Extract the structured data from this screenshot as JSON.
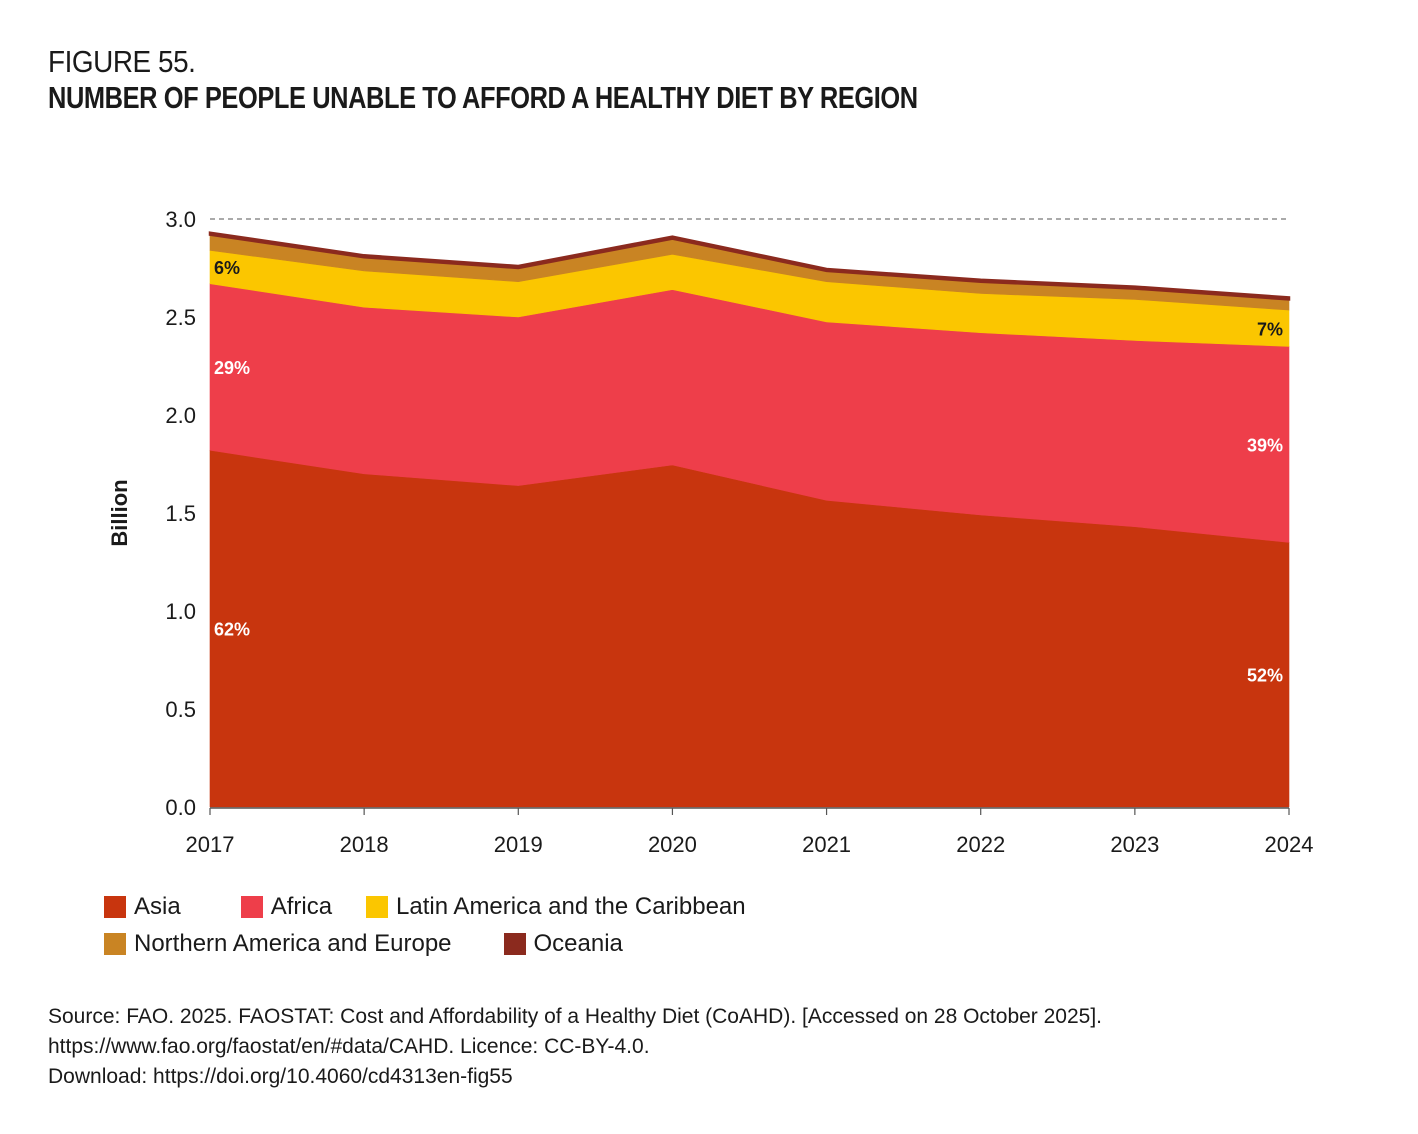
{
  "figure": {
    "number": "FIGURE 55.",
    "title": "NUMBER OF PEOPLE UNABLE TO AFFORD A HEALTHY DIET BY REGION"
  },
  "chart_data": {
    "type": "area",
    "stacked": true,
    "title": "NUMBER OF PEOPLE UNABLE TO AFFORD A HEALTHY DIET BY REGION",
    "xlabel": "",
    "ylabel": "Billion",
    "x": [
      "2017",
      "2018",
      "2019",
      "2020",
      "2021",
      "2022",
      "2023",
      "2024"
    ],
    "ylim": [
      0,
      3.0
    ],
    "yticks": [
      "0.0",
      "0.5",
      "1.0",
      "1.5",
      "2.0",
      "2.5",
      "3.0"
    ],
    "ytick_values": [
      0,
      0.5,
      1.0,
      1.5,
      2.0,
      2.5,
      3.0
    ],
    "reference_line": {
      "value": 3.0,
      "style": "dashed"
    },
    "grid": false,
    "legend_position": "bottom",
    "series": [
      {
        "name": "Asia",
        "color": "#C8350E",
        "values": [
          1.82,
          1.7,
          1.64,
          1.745,
          1.565,
          1.49,
          1.43,
          1.35
        ]
      },
      {
        "name": "Africa",
        "color": "#EE3E4A",
        "values": [
          0.85,
          0.85,
          0.86,
          0.895,
          0.91,
          0.93,
          0.95,
          1.0
        ]
      },
      {
        "name": "Latin America and the Caribbean",
        "color": "#FBC600",
        "values": [
          0.17,
          0.185,
          0.18,
          0.18,
          0.205,
          0.2,
          0.21,
          0.185
        ]
      },
      {
        "name": "Northern America and Europe",
        "color": "#C98423",
        "values": [
          0.08,
          0.07,
          0.07,
          0.08,
          0.055,
          0.06,
          0.055,
          0.055
        ]
      },
      {
        "name": "Oceania",
        "color": "#8B2A1E",
        "values": [
          0.01,
          0.01,
          0.01,
          0.01,
          0.01,
          0.01,
          0.01,
          0.01
        ]
      }
    ],
    "annotations": [
      {
        "series": "Asia",
        "x": "2017",
        "text": "62%",
        "color": "#ffffff"
      },
      {
        "series": "Africa",
        "x": "2017",
        "text": "29%",
        "color": "#ffffff"
      },
      {
        "series": "Latin America and the Caribbean",
        "x": "2017",
        "text": "6%",
        "color": "#1a1a1a"
      },
      {
        "series": "Asia",
        "x": "2024",
        "text": "52%",
        "color": "#ffffff"
      },
      {
        "series": "Africa",
        "x": "2024",
        "text": "39%",
        "color": "#ffffff"
      },
      {
        "series": "Latin America and the Caribbean",
        "x": "2024",
        "text": "7%",
        "color": "#1a1a1a"
      }
    ]
  },
  "source": {
    "line1": "Source: FAO. 2025. FAOSTAT: Cost and Affordability of a Healthy Diet (CoAHD). [Accessed on 28 October 2025].",
    "line2": "https://www.fao.org/faostat/en/#data/CAHD. Licence: CC-BY-4.0.",
    "line3": "Download: https://doi.org/10.4060/cd4313en-fig55"
  }
}
